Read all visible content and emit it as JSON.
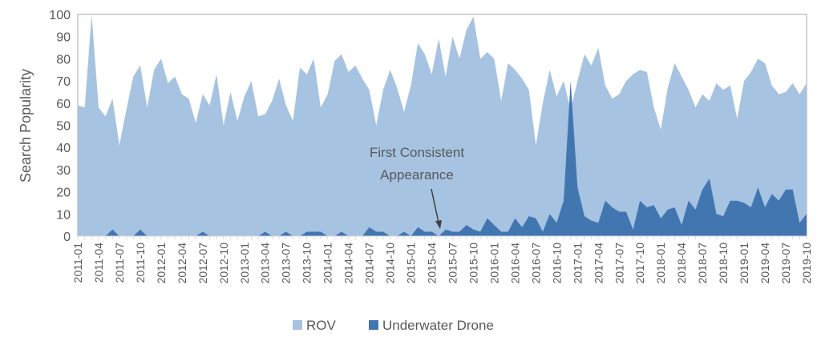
{
  "chart_data": {
    "type": "area",
    "ylabel": "Search Popularity",
    "xlabel": "",
    "ylim": [
      0,
      100
    ],
    "yticks": [
      0,
      10,
      20,
      30,
      40,
      50,
      60,
      70,
      80,
      90,
      100
    ],
    "x_start": "2011-01",
    "x_end": "2019-10",
    "x_tick_every_months": 3,
    "grid": false,
    "legend": "bottom",
    "colors": {
      "ROV": "#a6c3e1",
      "Underwater Drone": "#4276b1"
    },
    "series": [
      {
        "name": "ROV",
        "values": [
          59,
          58,
          100,
          58,
          54,
          62,
          41,
          57,
          72,
          77,
          58,
          75,
          80,
          69,
          72,
          64,
          62,
          51,
          64,
          59,
          73,
          50,
          65,
          52,
          63,
          70,
          54,
          55,
          61,
          71,
          59,
          52,
          76,
          73,
          80,
          58,
          64,
          79,
          82,
          74,
          77,
          71,
          66,
          50,
          66,
          75,
          67,
          56,
          68,
          87,
          82,
          73,
          89,
          72,
          90,
          80,
          93,
          99,
          80,
          83,
          80,
          61,
          78,
          75,
          71,
          66,
          41,
          60,
          75,
          63,
          70,
          57,
          70,
          82,
          77,
          85,
          68,
          62,
          64,
          70,
          73,
          75,
          74,
          58,
          48,
          67,
          78,
          72,
          66,
          58,
          64,
          61,
          69,
          66,
          68,
          53,
          70,
          74,
          80,
          78,
          68,
          64,
          65,
          69,
          64,
          69
        ]
      },
      {
        "name": "Underwater Drone",
        "values": [
          0,
          0,
          0,
          0,
          0,
          3,
          0,
          0,
          0,
          3,
          0,
          0,
          0,
          0,
          0,
          0,
          0,
          0,
          2,
          0,
          0,
          0,
          0,
          0,
          0,
          0,
          0,
          2,
          0,
          0,
          2,
          0,
          0,
          2,
          2,
          2,
          0,
          0,
          2,
          0,
          0,
          0,
          4,
          2,
          2,
          0,
          0,
          2,
          0,
          4,
          2,
          2,
          0,
          3,
          2,
          2,
          5,
          3,
          2,
          8,
          5,
          2,
          2,
          8,
          4,
          9,
          8,
          2,
          10,
          6,
          16,
          70,
          22,
          9,
          7,
          6,
          16,
          13,
          11,
          11,
          3,
          16,
          13,
          14,
          8,
          12,
          13,
          5,
          16,
          12,
          21,
          26,
          10,
          9,
          16,
          16,
          15,
          13,
          22,
          13,
          19,
          16,
          21,
          21,
          6,
          10
        ]
      }
    ],
    "annotation": {
      "text_line1": "First Consistent",
      "text_line2": "Appearance",
      "points_to": "2015-05"
    }
  }
}
